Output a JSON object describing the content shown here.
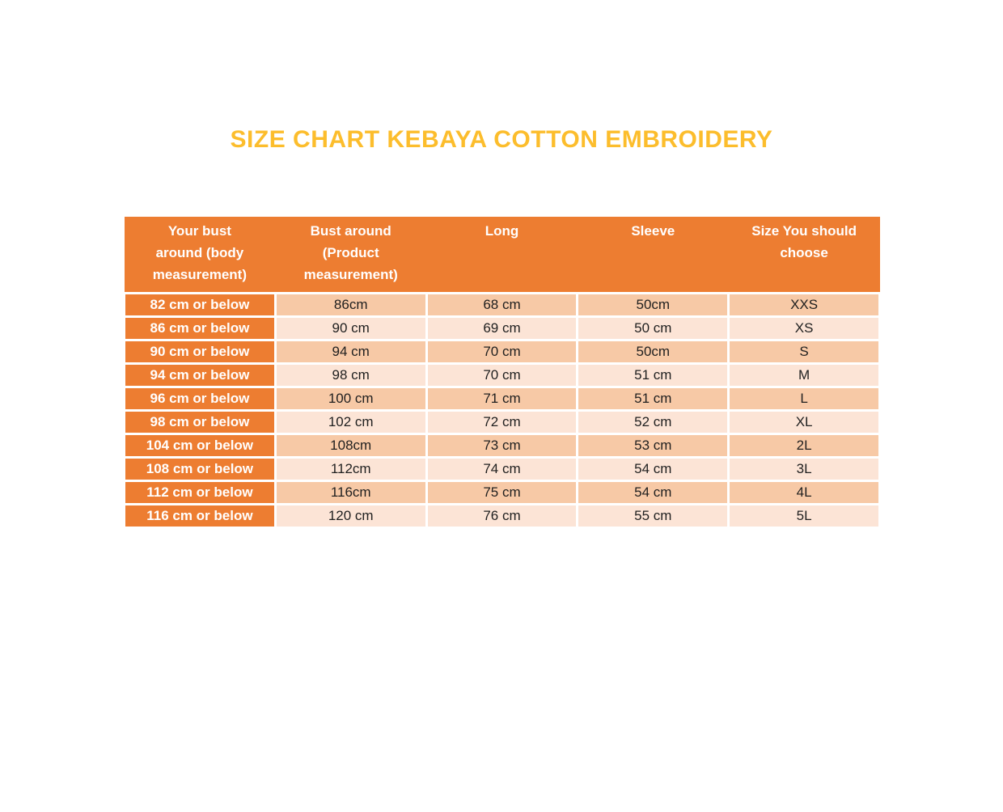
{
  "page": {
    "title": "SIZE CHART KEBAYA COTTON EMBROIDERY"
  },
  "colors": {
    "title_gold": "#FCBD2C",
    "header_orange": "#ED7D31",
    "header_text": "#FFFFFF",
    "stripe_dark": "#F7C9A6",
    "stripe_light": "#FCE4D6",
    "data_text": "#1F1F1F"
  },
  "table": {
    "columns": [
      "Your bust around (body measurement)",
      "Bust around (Product measurement)",
      "Long",
      "Sleeve",
      "Size You should choose"
    ],
    "rows": [
      [
        "82 cm or below",
        "86cm",
        "68 cm",
        "50cm",
        "XXS"
      ],
      [
        "86 cm or below",
        "90 cm",
        "69 cm",
        "50 cm",
        "XS"
      ],
      [
        "90 cm or below",
        "94 cm",
        "70 cm",
        "50cm",
        "S"
      ],
      [
        "94 cm or below",
        "98 cm",
        "70 cm",
        "51 cm",
        "M"
      ],
      [
        "96 cm or below",
        "100 cm",
        "71 cm",
        "51 cm",
        "L"
      ],
      [
        "98 cm or below",
        "102 cm",
        "72 cm",
        "52 cm",
        "XL"
      ],
      [
        "104 cm or below",
        "108cm",
        "73 cm",
        "53 cm",
        "2L"
      ],
      [
        "108 cm or below",
        "112cm",
        "74 cm",
        "54 cm",
        "3L"
      ],
      [
        "112 cm or below",
        "116cm",
        "75 cm",
        "54 cm",
        "4L"
      ],
      [
        "116 cm or below",
        "120 cm",
        "76 cm",
        "55 cm",
        "5L"
      ]
    ]
  }
}
